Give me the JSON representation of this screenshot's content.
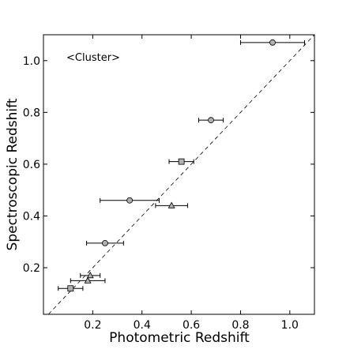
{
  "chart_data": {
    "type": "scatter",
    "xlabel": "Photometric Redshift",
    "ylabel": "Spectroscopic Redshift",
    "annotation": "<Cluster>",
    "xlim": [
      0.0,
      1.1
    ],
    "ylim": [
      0.02,
      1.1
    ],
    "x_ticks": [
      0.2,
      0.4,
      0.6,
      0.8,
      1.0
    ],
    "x_tick_labels": [
      "0.2",
      "0.4",
      "0.6",
      "0.8",
      "1.0"
    ],
    "y_ticks": [
      0.2,
      0.4,
      0.6,
      0.8,
      1.0
    ],
    "y_tick_labels": [
      "0.2",
      "0.4",
      "0.6",
      "0.8",
      "1.0"
    ],
    "grid": false,
    "reference_line": "y = x",
    "marker_color": "#b0b0b0",
    "series": [
      {
        "marker": "circle",
        "points": [
          {
            "x": 0.93,
            "y": 1.07,
            "xerr": [
              0.13,
              0.13
            ]
          },
          {
            "x": 0.68,
            "y": 0.77,
            "xerr": [
              0.05,
              0.05
            ]
          },
          {
            "x": 0.35,
            "y": 0.46,
            "xerr": [
              0.12,
              0.12
            ]
          },
          {
            "x": 0.25,
            "y": 0.295,
            "xerr": [
              0.075,
              0.075
            ]
          }
        ]
      },
      {
        "marker": "square",
        "points": [
          {
            "x": 0.56,
            "y": 0.61,
            "xerr": [
              0.05,
              0.05
            ]
          },
          {
            "x": 0.11,
            "y": 0.12,
            "xerr": [
              0.05,
              0.05
            ]
          }
        ]
      },
      {
        "marker": "triangle",
        "points": [
          {
            "x": 0.52,
            "y": 0.44,
            "xerr": [
              0.065,
              0.065
            ]
          },
          {
            "x": 0.19,
            "y": 0.17,
            "xerr": [
              0.04,
              0.04
            ]
          },
          {
            "x": 0.18,
            "y": 0.15,
            "xerr": [
              0.07,
              0.07
            ]
          }
        ]
      }
    ]
  }
}
